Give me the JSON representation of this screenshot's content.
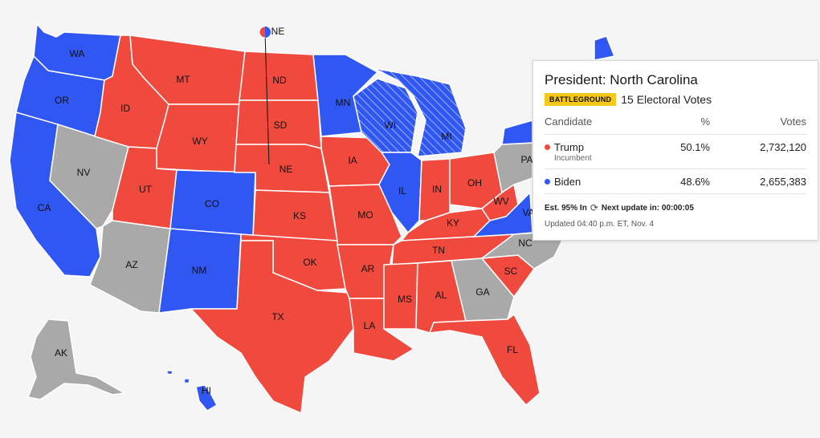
{
  "colors": {
    "rep": "#f04a3e",
    "dem": "#3057f2",
    "undecided": "#a9a9a9",
    "background": "#f5f5f5"
  },
  "states": [
    {
      "code": "WA",
      "party": "dem"
    },
    {
      "code": "OR",
      "party": "dem"
    },
    {
      "code": "CA",
      "party": "dem"
    },
    {
      "code": "NV",
      "party": "undecided"
    },
    {
      "code": "ID",
      "party": "rep"
    },
    {
      "code": "MT",
      "party": "rep"
    },
    {
      "code": "WY",
      "party": "rep"
    },
    {
      "code": "UT",
      "party": "rep"
    },
    {
      "code": "CO",
      "party": "dem"
    },
    {
      "code": "AZ",
      "party": "undecided"
    },
    {
      "code": "NM",
      "party": "dem"
    },
    {
      "code": "ND",
      "party": "rep"
    },
    {
      "code": "SD",
      "party": "rep"
    },
    {
      "code": "NE",
      "party": "rep"
    },
    {
      "code": "KS",
      "party": "rep"
    },
    {
      "code": "OK",
      "party": "rep"
    },
    {
      "code": "TX",
      "party": "rep"
    },
    {
      "code": "MN",
      "party": "dem"
    },
    {
      "code": "IA",
      "party": "rep"
    },
    {
      "code": "MO",
      "party": "rep"
    },
    {
      "code": "AR",
      "party": "rep"
    },
    {
      "code": "LA",
      "party": "rep"
    },
    {
      "code": "WI",
      "party": "dem-hatched"
    },
    {
      "code": "MI",
      "party": "dem-hatched"
    },
    {
      "code": "IL",
      "party": "dem"
    },
    {
      "code": "IN",
      "party": "rep"
    },
    {
      "code": "OH",
      "party": "rep"
    },
    {
      "code": "KY",
      "party": "rep"
    },
    {
      "code": "TN",
      "party": "rep"
    },
    {
      "code": "MS",
      "party": "rep"
    },
    {
      "code": "AL",
      "party": "rep"
    },
    {
      "code": "GA",
      "party": "undecided"
    },
    {
      "code": "FL",
      "party": "rep"
    },
    {
      "code": "SC",
      "party": "rep"
    },
    {
      "code": "NC",
      "party": "undecided"
    },
    {
      "code": "WV",
      "party": "rep"
    },
    {
      "code": "VA",
      "party": "dem"
    },
    {
      "code": "PA",
      "party": "undecided"
    },
    {
      "code": "AK",
      "party": "undecided"
    },
    {
      "code": "HI",
      "party": "dem"
    }
  ],
  "ne_split_label": "NE",
  "card": {
    "title": "President: North Carolina",
    "badge": "BATTLEGROUND",
    "electoral_votes": "15 Electoral Votes",
    "headers": {
      "candidate": "Candidate",
      "pct": "%",
      "votes": "Votes"
    },
    "rows": [
      {
        "name": "Trump",
        "sub": "Incumbent",
        "pct": "50.1%",
        "votes": "2,732,120",
        "party": "rep"
      },
      {
        "name": "Biden",
        "sub": "",
        "pct": "48.6%",
        "votes": "2,655,383",
        "party": "dem"
      }
    ],
    "est": "Est. 95% In",
    "next_update": "Next update in: 00:00:05",
    "updated": "Updated 04:40 p.m. ET, Nov. 4"
  }
}
